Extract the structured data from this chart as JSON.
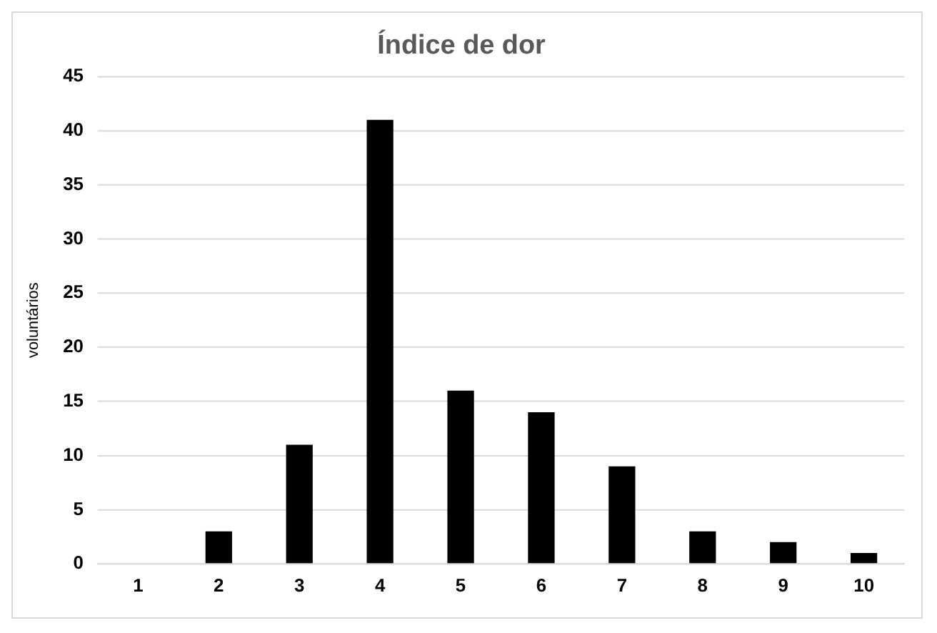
{
  "chart_data": {
    "type": "bar",
    "title": "Índice de dor",
    "ylabel": "voluntários",
    "categories": [
      "1",
      "2",
      "3",
      "4",
      "5",
      "6",
      "7",
      "8",
      "9",
      "10"
    ],
    "values": [
      0,
      3,
      11,
      41,
      16,
      14,
      9,
      3,
      2,
      1
    ],
    "color": "#000000",
    "ylim": [
      0,
      45
    ],
    "yticks": [
      0,
      5,
      10,
      15,
      20,
      25,
      30,
      35,
      40,
      45
    ],
    "grid": "y",
    "legend": false
  }
}
